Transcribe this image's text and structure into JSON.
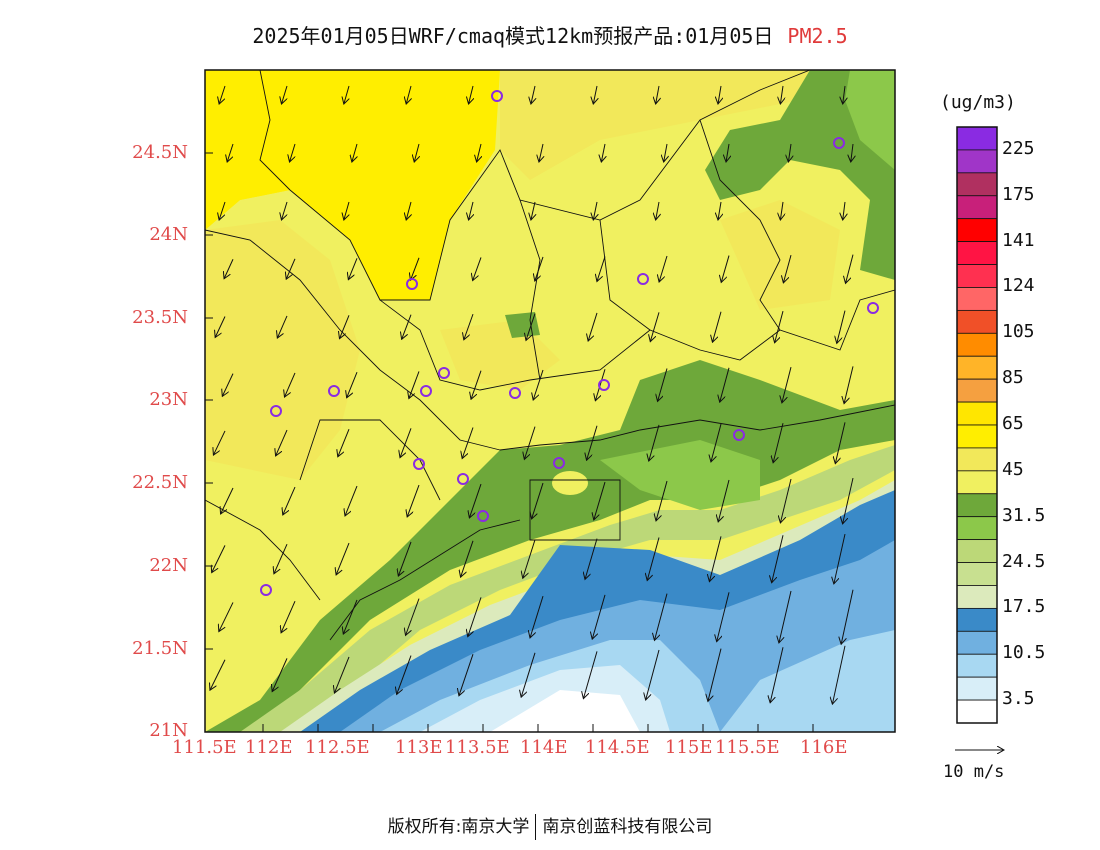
{
  "header": {
    "title": "2025年01月05日WRF/cmaq模式12km预报产品:01月05日",
    "pollutant": "PM2.5"
  },
  "axes": {
    "lat_labels": [
      "24.5N",
      "24N",
      "23.5N",
      "23N",
      "22.5N",
      "22N",
      "21.5N",
      "21N"
    ],
    "lon_labels": [
      "111.5E",
      "112E",
      "112.5E",
      "113E",
      "113.5E",
      "114E",
      "114.5E",
      "115E",
      "115.5E",
      "116E"
    ]
  },
  "colorbar": {
    "unit": "(ug/m3)",
    "levels": [
      {
        "label": "225",
        "color": "#8a2be2"
      },
      {
        "label": "",
        "color": "#a035c8"
      },
      {
        "label": "175",
        "color": "#b03060"
      },
      {
        "label": "",
        "color": "#c8207a"
      },
      {
        "label": "141",
        "color": "#ff0000"
      },
      {
        "label": "",
        "color": "#ff1444"
      },
      {
        "label": "124",
        "color": "#ff3050"
      },
      {
        "label": "",
        "color": "#ff6666"
      },
      {
        "label": "105",
        "color": "#f05028"
      },
      {
        "label": "",
        "color": "#ff8c00"
      },
      {
        "label": "85",
        "color": "#ffb428"
      },
      {
        "label": "",
        "color": "#f5a040"
      },
      {
        "label": "65",
        "color": "#ffe600"
      },
      {
        "label": "",
        "color": "#ffee00"
      },
      {
        "label": "45",
        "color": "#f2e85a"
      },
      {
        "label": "",
        "color": "#f0f060"
      },
      {
        "label": "31.5",
        "color": "#6ea83a"
      },
      {
        "label": "",
        "color": "#8cc84a"
      },
      {
        "label": "24.5",
        "color": "#bcd878"
      },
      {
        "label": "",
        "color": "#c8e090"
      },
      {
        "label": "17.5",
        "color": "#dceabc"
      },
      {
        "label": "",
        "color": "#3a8ac8"
      },
      {
        "label": "10.5",
        "color": "#70b0e0"
      },
      {
        "label": "",
        "color": "#a8d8f2"
      },
      {
        "label": "3.5",
        "color": "#d8eef8"
      },
      {
        "label": "",
        "color": "#ffffff"
      }
    ]
  },
  "wind": {
    "reference_label": "10 m/s"
  },
  "footer": {
    "copyright_prefix": "版权所有:",
    "org1": "南京大学",
    "org2": "南京创蓝科技有限公司"
  },
  "colors": {
    "yellow_dark": "#ffee00",
    "yellow_mid": "#f2e85a",
    "yellow_light": "#f0f060",
    "green_dark": "#6ea83a",
    "green_mid": "#8cc84a",
    "green_light": "#bcd878",
    "green_pale": "#dceabc",
    "blue_dark": "#3a8ac8",
    "blue_mid": "#70b0e0",
    "blue_light": "#a8d8f2",
    "blue_pale": "#d8eef8",
    "station_marker": "#8a2be2",
    "axis_label": "#e04a4a"
  }
}
